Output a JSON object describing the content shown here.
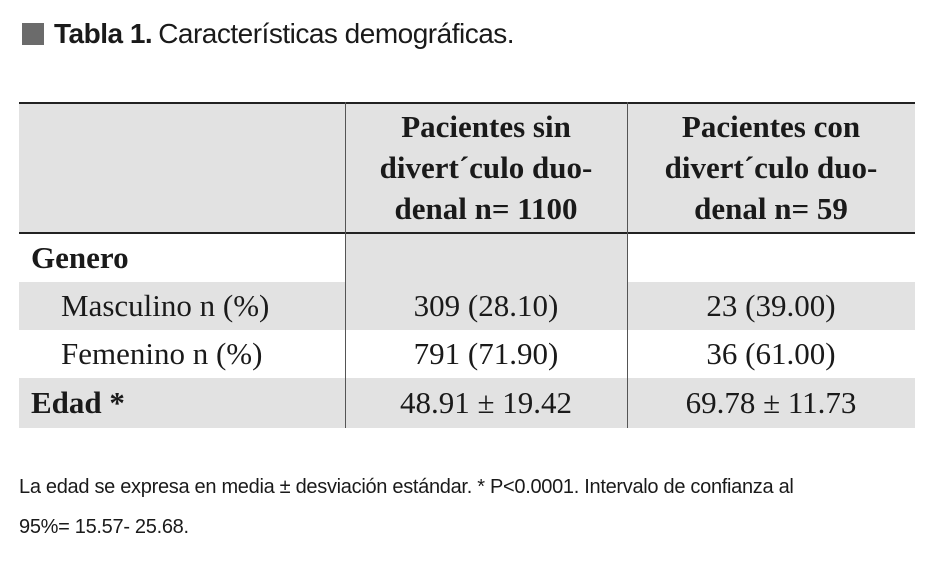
{
  "title": {
    "label": "Tabla 1.",
    "text": "Características demográficas."
  },
  "table": {
    "headers": [
      "",
      [
        "Pacientes sin",
        "divert´culo duo-",
        "denal n= 1100"
      ],
      [
        "Pacientes con",
        "divert´culo duo-",
        "denal n= 59"
      ]
    ],
    "rows": [
      {
        "label": "Genero",
        "values": [
          "",
          ""
        ]
      },
      {
        "label": "Masculino n (%)",
        "values": [
          "309 (28.10)",
          "23 (39.00)"
        ]
      },
      {
        "label": "Femenino n (%)",
        "values": [
          "791 (71.90)",
          "36 (61.00)"
        ]
      },
      {
        "label": "Edad *",
        "values": [
          "48.91 ± 19.42",
          "69.78 ± 11.73"
        ]
      }
    ]
  },
  "footnote": {
    "line1": "La edad se expresa en media ± desviación estándar. * P<0.0001. Intervalo de confianza al",
    "line2": "95%= 15.57- 25.68."
  },
  "colors": {
    "shade": "#e2e2e2",
    "square": "#6b6b6b"
  }
}
